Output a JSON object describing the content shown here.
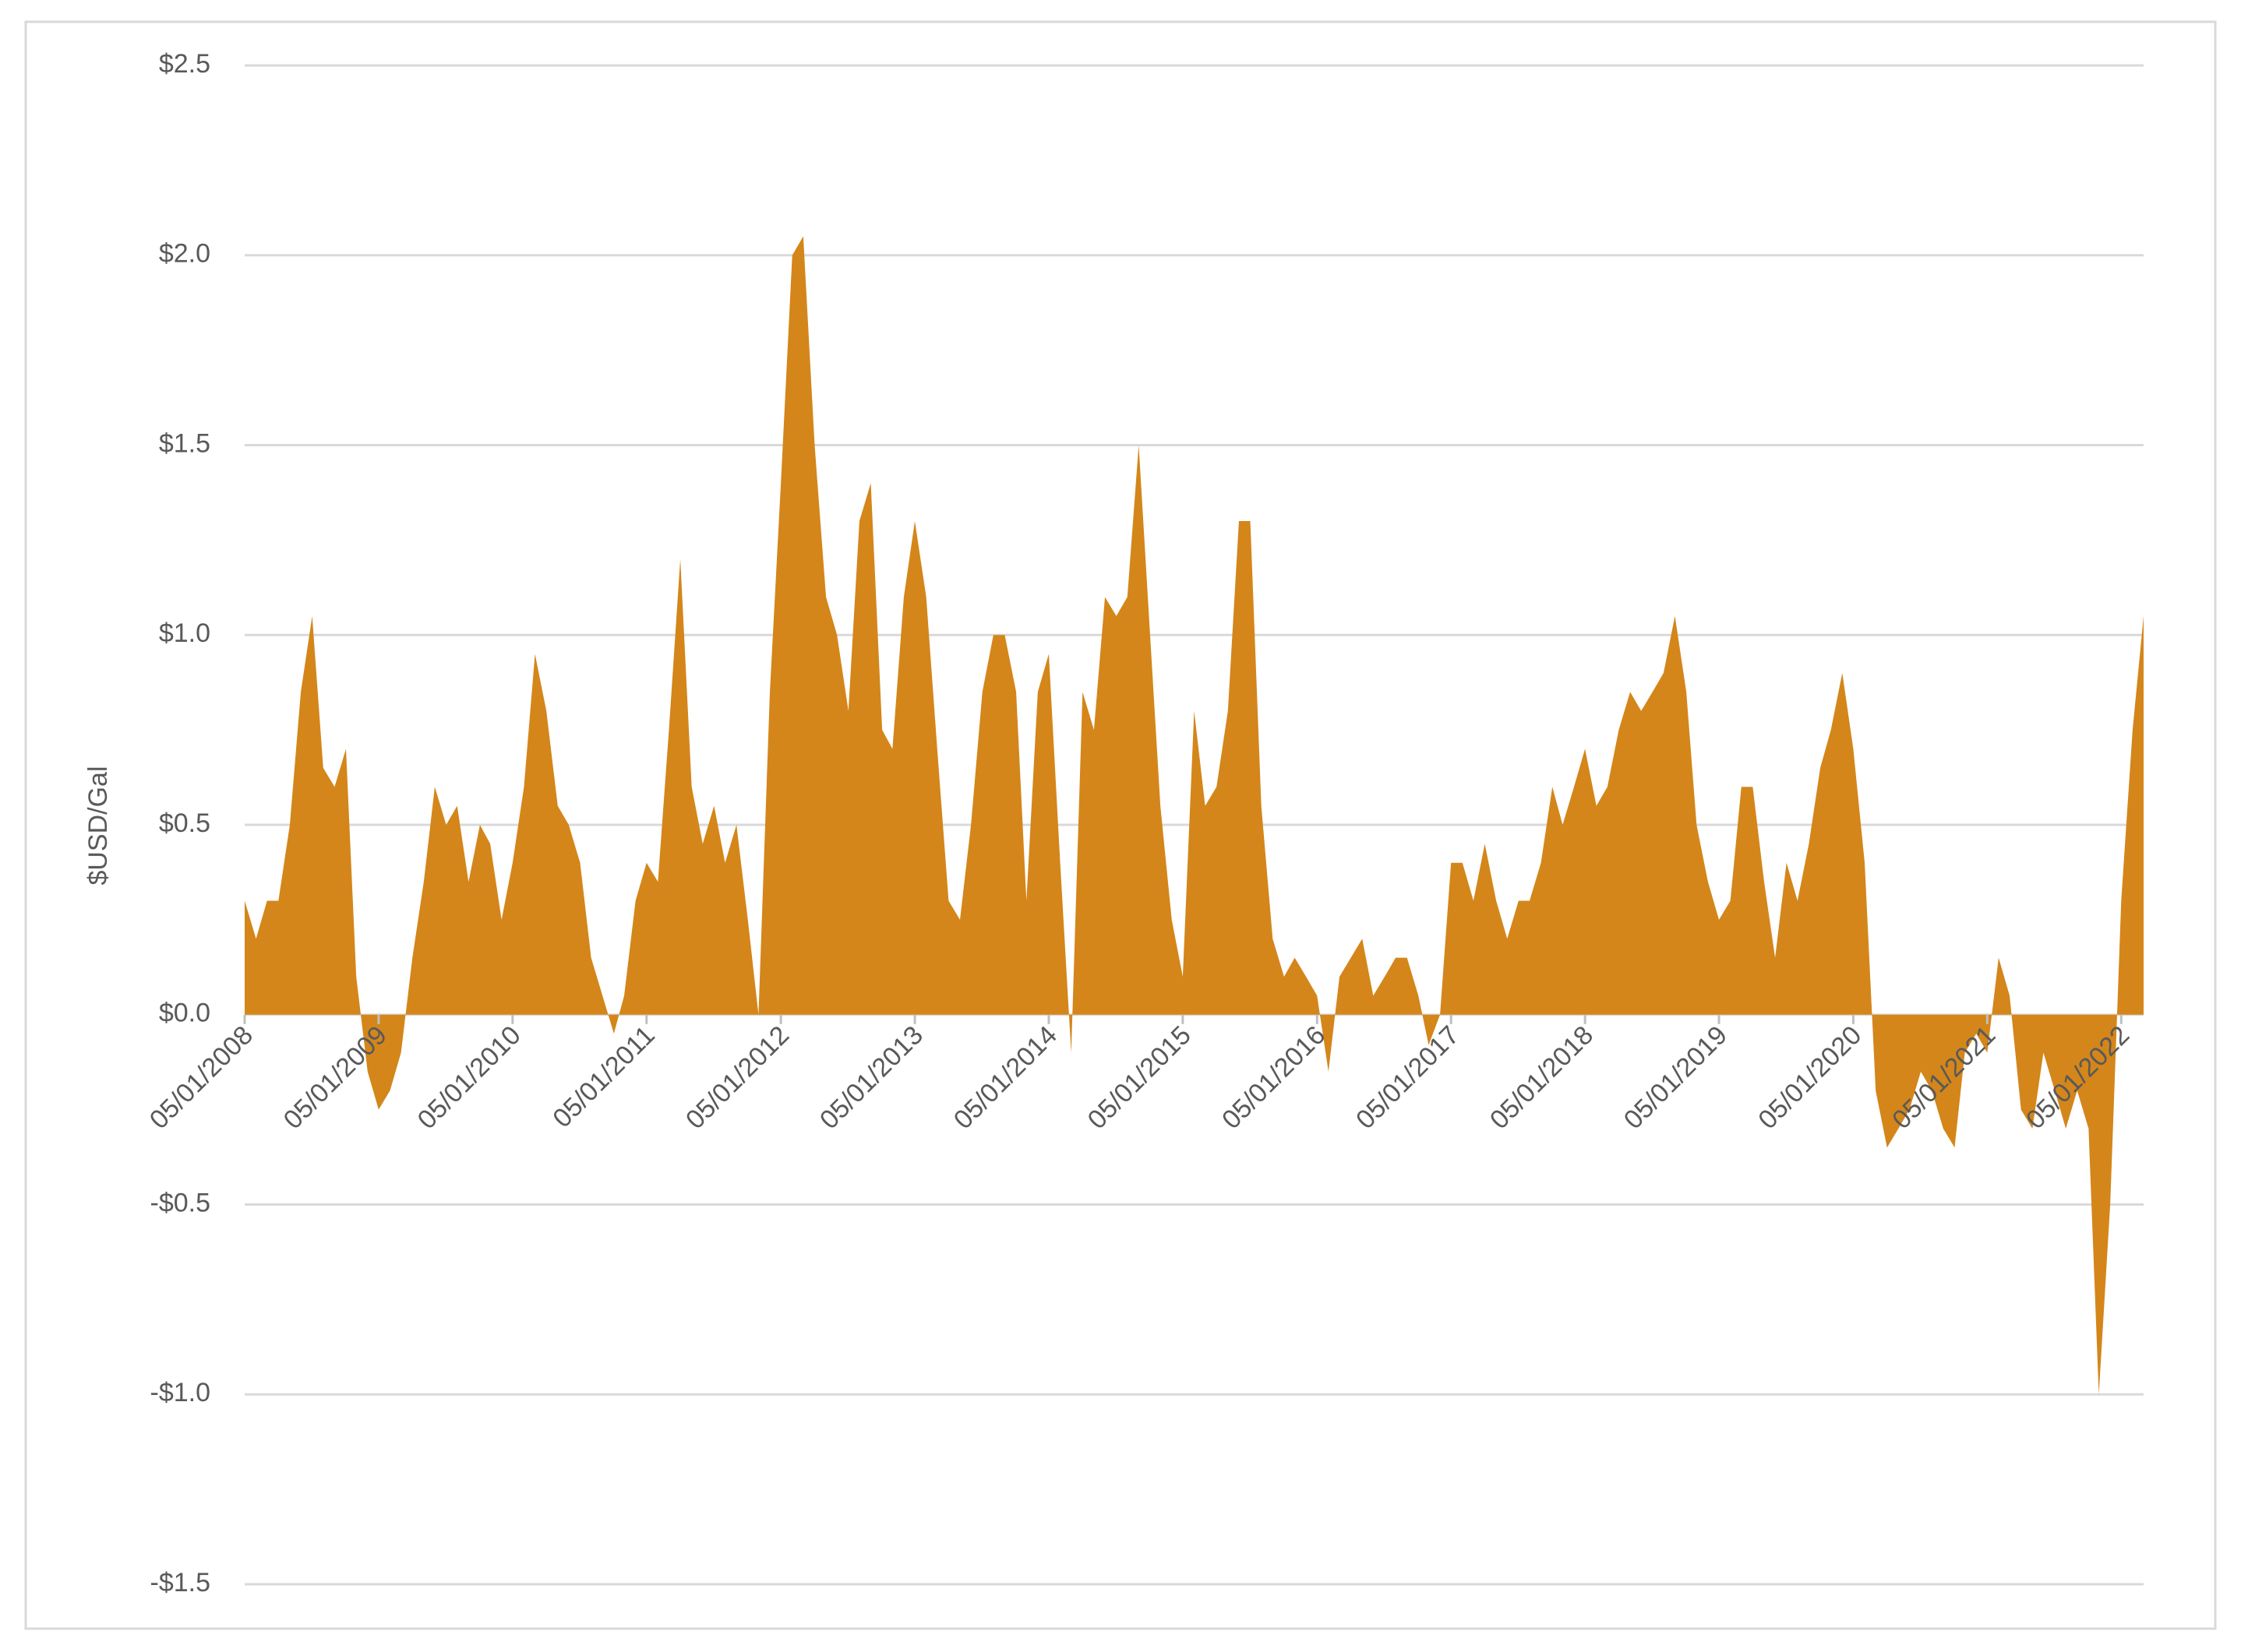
{
  "chart_data": {
    "type": "area",
    "y_label": "$USD/Gal",
    "color": "#d4861a",
    "grid": true,
    "x": [
      "05/01/2008",
      "06/01/2008",
      "07/01/2008",
      "08/01/2008",
      "09/01/2008",
      "10/01/2008",
      "11/01/2008",
      "12/01/2008",
      "01/01/2009",
      "02/01/2009",
      "03/01/2009",
      "04/01/2009",
      "05/01/2009",
      "06/01/2009",
      "07/01/2009",
      "08/01/2009",
      "09/01/2009",
      "10/01/2009",
      "11/01/2009",
      "12/01/2009",
      "01/01/2010",
      "02/01/2010",
      "03/01/2010",
      "04/01/2010",
      "05/01/2010",
      "06/01/2010",
      "07/01/2010",
      "08/01/2010",
      "09/01/2010",
      "10/01/2010",
      "11/01/2010",
      "12/01/2010",
      "01/01/2011",
      "02/01/2011",
      "03/01/2011",
      "04/01/2011",
      "05/01/2011",
      "06/01/2011",
      "07/01/2011",
      "08/01/2011",
      "09/01/2011",
      "10/01/2011",
      "11/01/2011",
      "12/01/2011",
      "01/01/2012",
      "02/01/2012",
      "03/01/2012",
      "04/01/2012",
      "05/01/2012",
      "06/01/2012",
      "07/01/2012",
      "08/01/2012",
      "09/01/2012",
      "10/01/2012",
      "11/01/2012",
      "12/01/2012",
      "01/01/2013",
      "02/01/2013",
      "03/01/2013",
      "04/01/2013",
      "05/01/2013",
      "06/01/2013",
      "07/01/2013",
      "08/01/2013",
      "09/01/2013",
      "10/01/2013",
      "11/01/2013",
      "12/01/2013",
      "01/01/2014",
      "02/01/2014",
      "03/01/2014",
      "04/01/2014",
      "05/01/2014",
      "06/01/2014",
      "07/01/2014",
      "08/01/2014",
      "09/01/2014",
      "10/01/2014",
      "11/01/2014",
      "12/01/2014",
      "01/01/2015",
      "02/01/2015",
      "03/01/2015",
      "04/01/2015",
      "05/01/2015",
      "06/01/2015",
      "07/01/2015",
      "08/01/2015",
      "09/01/2015",
      "10/01/2015",
      "11/01/2015",
      "12/01/2015",
      "01/01/2016",
      "02/01/2016",
      "03/01/2016",
      "04/01/2016",
      "05/01/2016",
      "06/01/2016",
      "07/01/2016",
      "08/01/2016",
      "09/01/2016",
      "10/01/2016",
      "11/01/2016",
      "12/01/2016",
      "01/01/2017",
      "02/01/2017",
      "03/01/2017",
      "04/01/2017",
      "05/01/2017",
      "06/01/2017",
      "07/01/2017",
      "08/01/2017",
      "09/01/2017",
      "10/01/2017",
      "11/01/2017",
      "12/01/2017",
      "01/01/2018",
      "02/01/2018",
      "03/01/2018",
      "04/01/2018",
      "05/01/2018",
      "06/01/2018",
      "07/01/2018",
      "08/01/2018",
      "09/01/2018",
      "10/01/2018",
      "11/01/2018",
      "12/01/2018",
      "01/01/2019",
      "02/01/2019",
      "03/01/2019",
      "04/01/2019",
      "05/01/2019",
      "06/01/2019",
      "07/01/2019",
      "08/01/2019",
      "09/01/2019",
      "10/01/2019",
      "11/01/2019",
      "12/01/2019",
      "01/01/2020",
      "02/01/2020",
      "03/01/2020",
      "04/01/2020",
      "05/01/2020",
      "06/01/2020",
      "07/01/2020",
      "08/01/2020",
      "09/01/2020",
      "10/01/2020",
      "11/01/2020",
      "12/01/2020",
      "01/01/2021",
      "02/01/2021",
      "03/01/2021",
      "04/01/2021",
      "05/01/2021",
      "06/01/2021",
      "07/01/2021",
      "08/01/2021",
      "09/01/2021",
      "10/01/2021",
      "11/01/2021",
      "12/01/2021",
      "01/01/2022",
      "02/01/2022",
      "03/01/2022",
      "04/01/2022",
      "05/01/2022",
      "06/01/2022",
      "07/01/2022"
    ],
    "values": [
      0.3,
      0.2,
      0.3,
      0.3,
      0.5,
      0.85,
      1.05,
      0.65,
      0.6,
      0.7,
      0.1,
      -0.15,
      -0.25,
      -0.2,
      -0.1,
      0.15,
      0.35,
      0.6,
      0.5,
      0.55,
      0.35,
      0.5,
      0.45,
      0.25,
      0.4,
      0.6,
      0.95,
      0.8,
      0.55,
      0.5,
      0.4,
      0.15,
      0.05,
      -0.05,
      0.05,
      0.3,
      0.4,
      0.35,
      0.75,
      1.2,
      0.6,
      0.45,
      0.55,
      0.4,
      0.5,
      0.25,
      0.0,
      0.85,
      1.4,
      2.0,
      2.05,
      1.5,
      1.1,
      1.0,
      0.8,
      1.3,
      1.4,
      0.75,
      0.7,
      1.1,
      1.3,
      1.1,
      0.7,
      0.3,
      0.25,
      0.5,
      0.85,
      1.0,
      1.0,
      0.85,
      0.3,
      0.85,
      0.95,
      0.4,
      -0.1,
      0.85,
      0.75,
      1.1,
      1.05,
      1.1,
      1.5,
      1.0,
      0.55,
      0.25,
      0.1,
      0.8,
      0.55,
      0.6,
      0.8,
      1.3,
      1.3,
      0.55,
      0.2,
      0.1,
      0.15,
      0.1,
      0.05,
      -0.15,
      0.1,
      0.15,
      0.2,
      0.05,
      0.1,
      0.15,
      0.15,
      0.05,
      -0.08,
      0.0,
      0.4,
      0.4,
      0.3,
      0.45,
      0.3,
      0.2,
      0.3,
      0.3,
      0.4,
      0.6,
      0.5,
      0.6,
      0.7,
      0.55,
      0.6,
      0.75,
      0.85,
      0.8,
      0.85,
      0.9,
      1.05,
      0.85,
      0.5,
      0.35,
      0.25,
      0.3,
      0.6,
      0.6,
      0.35,
      0.15,
      0.4,
      0.3,
      0.45,
      0.65,
      0.75,
      0.9,
      0.7,
      0.4,
      -0.2,
      -0.35,
      -0.3,
      -0.25,
      -0.15,
      -0.2,
      -0.3,
      -0.35,
      -0.1,
      -0.05,
      -0.1,
      0.15,
      0.05,
      -0.25,
      -0.3,
      -0.1,
      -0.2,
      -0.3,
      -0.2,
      -0.3,
      -1.0,
      -0.5,
      0.3,
      0.75,
      1.05
    ],
    "xlim": [
      "05/01/2008",
      "07/01/2022"
    ],
    "xticks": [
      "05/01/2008",
      "05/01/2009",
      "05/01/2010",
      "05/01/2011",
      "05/01/2012",
      "05/01/2013",
      "05/01/2014",
      "05/01/2015",
      "05/01/2016",
      "05/01/2017",
      "05/01/2018",
      "05/01/2019",
      "05/01/2020",
      "05/01/2021",
      "05/01/2022"
    ],
    "ylim": [
      -1.5,
      2.5
    ],
    "yticks": [
      {
        "value": -1.5,
        "label": "-$1.5"
      },
      {
        "value": -1.0,
        "label": "-$1.0"
      },
      {
        "value": -0.5,
        "label": "-$0.5"
      },
      {
        "value": 0,
        "label": "$0.0"
      },
      {
        "value": 0.5,
        "label": "$0.5"
      },
      {
        "value": 1.0,
        "label": "$1.0"
      },
      {
        "value": 1.5,
        "label": "$1.5"
      },
      {
        "value": 2.0,
        "label": "$2.0"
      },
      {
        "value": 2.5,
        "label": "$2.5"
      }
    ]
  }
}
